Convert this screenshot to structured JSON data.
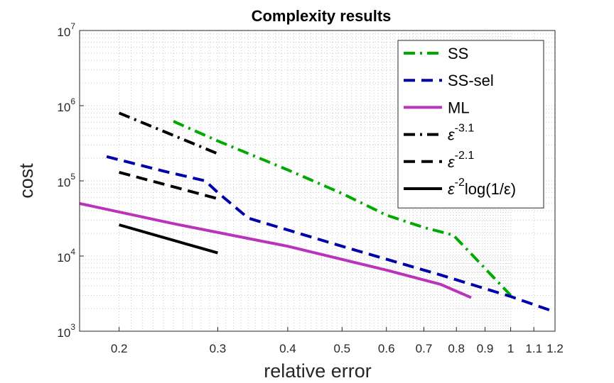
{
  "chart_data": {
    "type": "line",
    "title": "Complexity results",
    "xlabel": "relative error",
    "ylabel": "cost",
    "xscale": "log",
    "yscale": "log",
    "xlim": [
      0.17,
      1.2
    ],
    "ylim": [
      1000,
      10000000
    ],
    "grid": true,
    "legend_position": "top-right",
    "x_ticks": [
      0.2,
      0.3,
      0.4,
      0.5,
      0.6,
      0.7,
      0.8,
      0.9,
      1,
      1.1,
      1.2
    ],
    "x_tick_labels": [
      "0.2",
      "0.3",
      "0.4",
      "0.5",
      "0.6",
      "0.7",
      "0.8",
      "0.9",
      "1",
      "1.1",
      "1.2"
    ],
    "y_ticks": [
      {
        "value": 1000,
        "base": "10",
        "exp": "3"
      },
      {
        "value": 10000,
        "base": "10",
        "exp": "4"
      },
      {
        "value": 100000,
        "base": "10",
        "exp": "5"
      },
      {
        "value": 1000000,
        "base": "10",
        "exp": "6"
      },
      {
        "value": 10000000,
        "base": "10",
        "exp": "7"
      }
    ],
    "series": [
      {
        "name": "SS",
        "color": "#00aa00",
        "style": "dashdot",
        "x": [
          0.25,
          0.3,
          0.4,
          0.5,
          0.6,
          0.7,
          0.79,
          1.0
        ],
        "y": [
          620000,
          340000,
          140000,
          68000,
          35000,
          24000,
          19000,
          3000
        ]
      },
      {
        "name": "SS-sel",
        "color": "#0000aa",
        "style": "dashed",
        "x": [
          0.19,
          0.24,
          0.285,
          0.3,
          0.34,
          0.5,
          0.75,
          1.0,
          1.2
        ],
        "y": [
          210000,
          135000,
          100000,
          70000,
          32000,
          13500,
          5600,
          2900,
          1800
        ]
      },
      {
        "name": "ML",
        "color": "#bb33bb",
        "style": "solid",
        "x": [
          0.17,
          0.25,
          0.4,
          0.6,
          0.75,
          0.85
        ],
        "y": [
          50000,
          27000,
          13500,
          6500,
          4200,
          2800
        ]
      },
      {
        "name": "ε^-3.1",
        "label_base": "ε",
        "label_exp": "-3.1",
        "color": "#000000",
        "style": "dashdot",
        "x": [
          0.2,
          0.3
        ],
        "y": [
          800000,
          230000
        ]
      },
      {
        "name": "ε^-2.1",
        "label_base": "ε",
        "label_exp": "-2.1",
        "color": "#000000",
        "style": "dashed",
        "x": [
          0.2,
          0.3
        ],
        "y": [
          130000,
          58000
        ]
      },
      {
        "name": "ε^-2 log(1/ε)",
        "label_base": "ε",
        "label_exp": "-2",
        "label_suffix": "log(1/ε)",
        "color": "#000000",
        "style": "solid",
        "x": [
          0.2,
          0.3
        ],
        "y": [
          26000,
          11000
        ]
      }
    ]
  }
}
